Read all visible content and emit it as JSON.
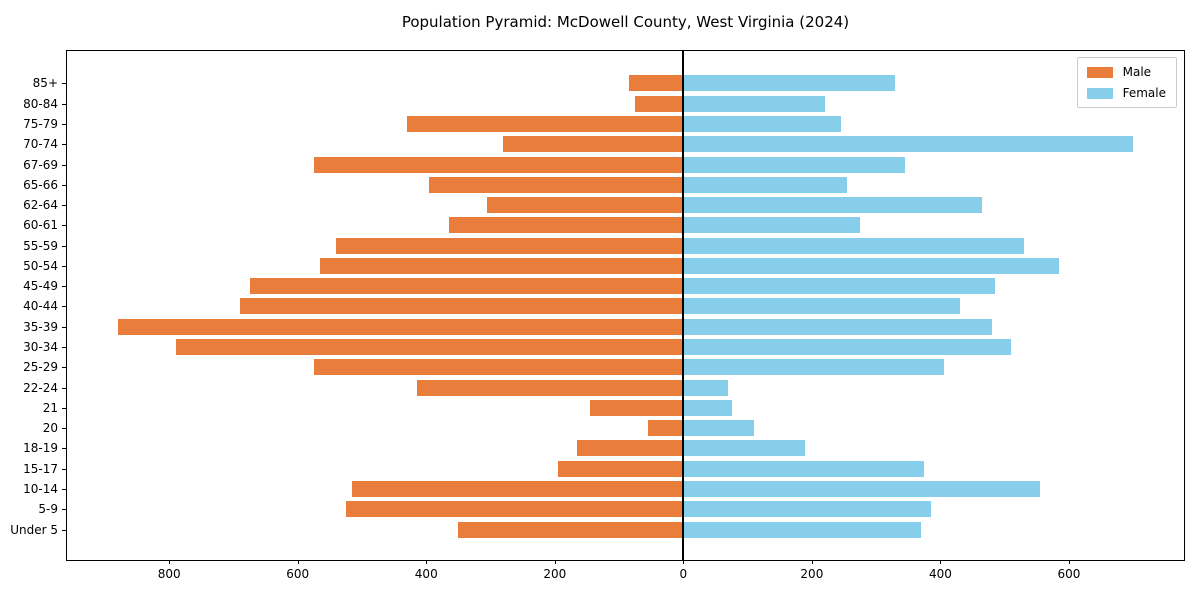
{
  "figure": {
    "title": "Population Pyramid: McDowell County, West Virginia (2024)"
  },
  "legend": {
    "position": "upper-right",
    "entries": [
      "Male",
      "Female"
    ]
  },
  "colors": {
    "male": "#e87d3c",
    "female": "#87ceeb",
    "axis": "#000000",
    "legend_border": "#cccccc"
  },
  "chart_data": {
    "type": "bar",
    "subtype": "population-pyramid",
    "orientation": "horizontal",
    "title": "Population Pyramid: McDowell County, West Virginia (2024)",
    "xlabel": "",
    "ylabel": "",
    "grid": false,
    "legend_position": "upper right",
    "zero_line": true,
    "categories_top_to_bottom": [
      "85+",
      "80-84",
      "75-79",
      "70-74",
      "67-69",
      "65-66",
      "62-64",
      "60-61",
      "55-59",
      "50-54",
      "45-49",
      "40-44",
      "35-39",
      "30-34",
      "25-29",
      "22-24",
      "21",
      "20",
      "18-19",
      "15-17",
      "10-14",
      "5-9",
      "Under 5"
    ],
    "series": [
      {
        "name": "Male",
        "side": "left",
        "color": "#e87d3c",
        "values": [
          85,
          75,
          430,
          280,
          575,
          395,
          305,
          365,
          540,
          565,
          675,
          690,
          880,
          790,
          575,
          415,
          145,
          55,
          165,
          195,
          515,
          525,
          350
        ]
      },
      {
        "name": "Female",
        "side": "right",
        "color": "#87ceeb",
        "values": [
          330,
          220,
          245,
          700,
          345,
          255,
          465,
          275,
          530,
          585,
          485,
          430,
          480,
          510,
          405,
          70,
          75,
          110,
          190,
          375,
          555,
          385,
          370
        ]
      }
    ],
    "x_axis": {
      "tick_values": [
        -800,
        -600,
        -400,
        -200,
        0,
        200,
        400,
        600
      ],
      "tick_labels": [
        "800",
        "600",
        "400",
        "200",
        "0",
        "200",
        "400",
        "600"
      ],
      "xlim": [
        -959,
        779
      ]
    }
  }
}
